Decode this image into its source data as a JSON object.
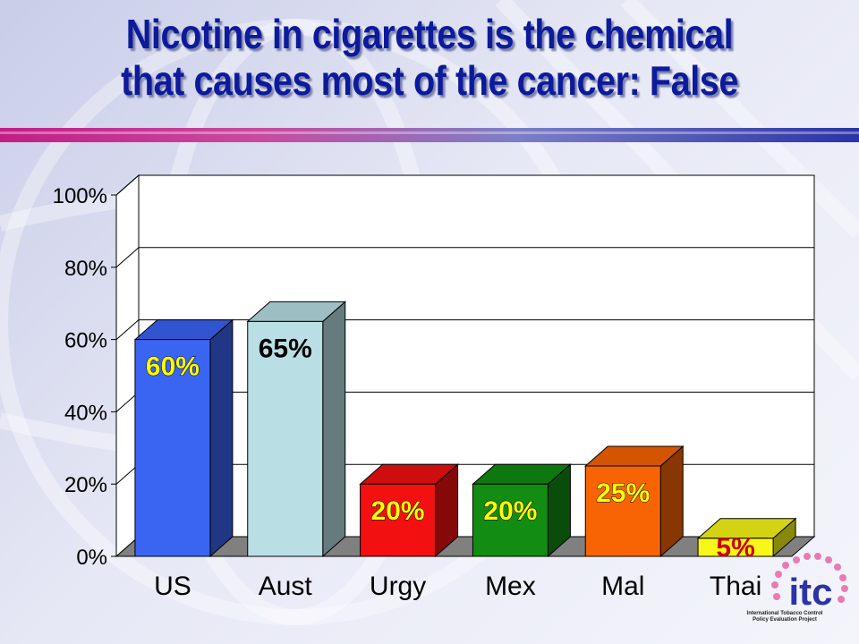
{
  "slide": {
    "title_line1": "Nicotine in cigarettes is the chemical",
    "title_line2": "that causes most of the cancer:  False"
  },
  "logo": {
    "mark": "itc",
    "caption_line1": "International Tobacco Control",
    "caption_line2": "Policy Evaluation Project"
  },
  "colors": {
    "title": "#0c1a9c",
    "US": "#3a64f2",
    "Aust": "#b9dfe4",
    "Urgy": "#f21010",
    "Mex": "#128c12",
    "Mal": "#f86404",
    "Thai": "#f8f818"
  },
  "chart_data": {
    "type": "bar",
    "title": "",
    "xlabel": "",
    "ylabel": "",
    "categories": [
      "US",
      "Aust",
      "Urgy",
      "Mex",
      "Mal",
      "Thai"
    ],
    "values": [
      60,
      65,
      20,
      20,
      25,
      5
    ],
    "value_labels": [
      "60%",
      "65%",
      "20%",
      "20%",
      "25%",
      "5%"
    ],
    "ylim": [
      0,
      100
    ],
    "yticks": [
      "0%",
      "20%",
      "40%",
      "60%",
      "80%",
      "100%"
    ],
    "grid": true,
    "style": "3d",
    "legend": "none"
  }
}
